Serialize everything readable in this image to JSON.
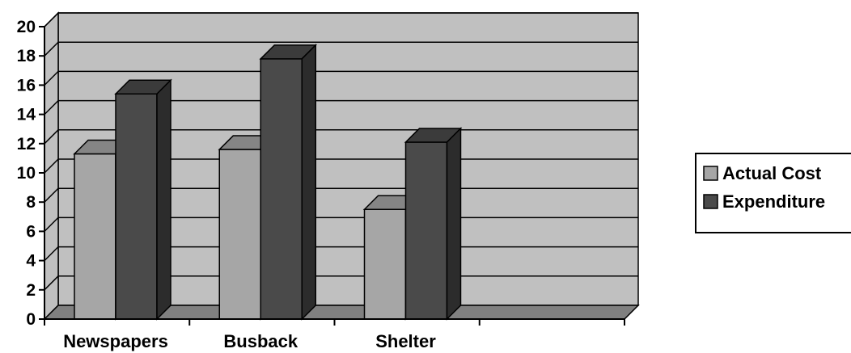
{
  "chart_data": {
    "type": "bar",
    "categories": [
      "Newspapers",
      "Busback",
      "Shelter",
      ""
    ],
    "series": [
      {
        "name": "Actual Cost",
        "values": [
          11.3,
          11.6,
          7.5,
          null
        ]
      },
      {
        "name": "Expenditure",
        "values": [
          15.4,
          17.8,
          12.1,
          null
        ]
      }
    ],
    "y_ticks": [
      "0",
      "2",
      "4",
      "6",
      "8",
      "10",
      "12",
      "14",
      "16",
      "18",
      "20"
    ],
    "ylim": [
      0,
      20
    ],
    "title": "",
    "xlabel": "",
    "ylabel": "",
    "grid": true,
    "legend_placement": "right",
    "style": "3d-clustered-column",
    "colors": {
      "Actual Cost": "#a6a6a6",
      "Expenditure": "#4a4a4a",
      "plot_background": "#c0c0c0",
      "floor": "#808080",
      "gridline": "#000000"
    }
  }
}
